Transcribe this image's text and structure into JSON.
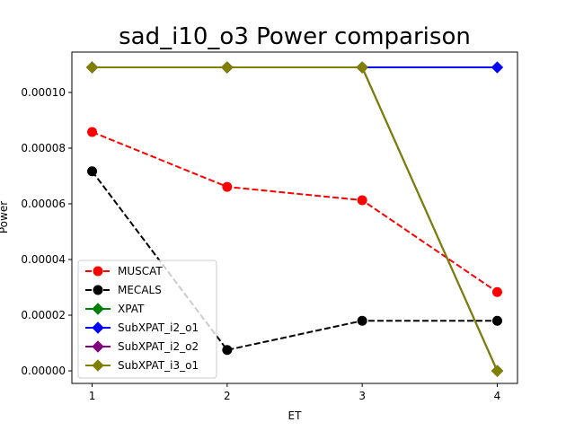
{
  "chart_data": {
    "type": "line",
    "title": "sad_i10_o3 Power comparison",
    "xlabel": "ET",
    "ylabel": "Power",
    "x": [
      1,
      2,
      3,
      4
    ],
    "xlim": [
      0.85,
      4.15
    ],
    "ylim": [
      -4.5e-06,
      0.0001145
    ],
    "xticks": [
      1,
      2,
      3,
      4
    ],
    "xtick_labels": [
      "1",
      "2",
      "3",
      "4"
    ],
    "yticks": [
      0,
      2e-05,
      4e-05,
      6e-05,
      8e-05,
      0.0001
    ],
    "ytick_labels": [
      "0.00000",
      "0.00002",
      "0.00004",
      "0.00006",
      "0.00008",
      "0.00010"
    ],
    "grid": false,
    "legend_position": "lower-left",
    "series": [
      {
        "name": "MUSCAT",
        "color": "#ff0000",
        "line_style": "dashed",
        "marker": "circle",
        "values": [
          8.58e-05,
          6.61e-05,
          6.13e-05,
          2.83e-05
        ]
      },
      {
        "name": "MECALS",
        "color": "#000000",
        "line_style": "dashed",
        "marker": "circle",
        "values": [
          7.17e-05,
          7.5e-06,
          1.8e-05,
          1.8e-05
        ]
      },
      {
        "name": "XPAT",
        "color": "#008000",
        "line_style": "solid",
        "marker": "diamond",
        "values": [
          0.000109,
          0.000109,
          0.000109,
          0.0
        ]
      },
      {
        "name": "SubXPAT_i2_o1",
        "color": "#0000ff",
        "line_style": "solid",
        "marker": "diamond",
        "values": [
          0.000109,
          0.000109,
          0.000109,
          0.000109
        ]
      },
      {
        "name": "SubXPAT_i2_o2",
        "color": "#800080",
        "line_style": "solid",
        "marker": "diamond",
        "values": [
          0.000109,
          0.000109,
          0.000109,
          0.0
        ]
      },
      {
        "name": "SubXPAT_i3_o1",
        "color": "#808000",
        "line_style": "solid",
        "marker": "diamond",
        "values": [
          0.000109,
          0.000109,
          0.000109,
          0.0
        ]
      }
    ]
  }
}
